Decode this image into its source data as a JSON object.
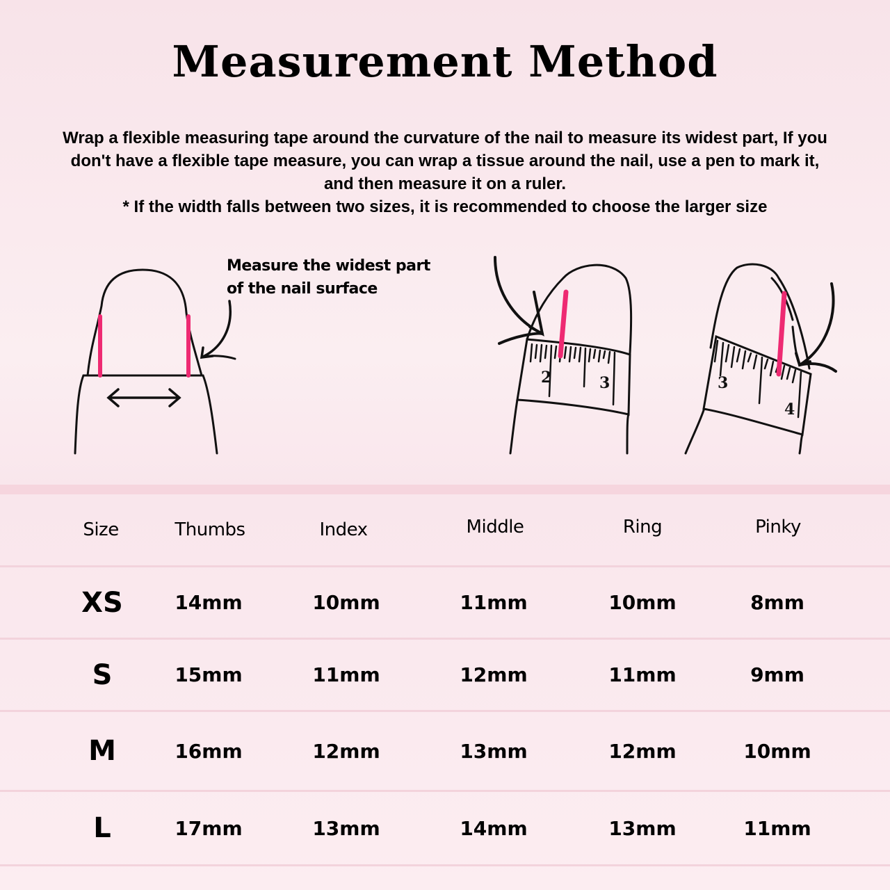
{
  "title": "Measurement Method",
  "description": [
    "Wrap a flexible measuring tape around the curvature of the nail to measure its widest part, If you",
    "don't have a flexible tape measure, you can wrap a tissue around the nail, use a pen to mark it,",
    "and then measure it on a ruler.",
    "* If the width falls between two sizes, it is recommended to choose the larger size"
  ],
  "illustration": {
    "label_lines": [
      "Measure the widest part",
      "of the nail surface"
    ],
    "ruler1_numbers": [
      "2",
      "3"
    ],
    "ruler2_numbers": [
      "3",
      "4"
    ],
    "accent_color": "#ee2a72"
  },
  "table": {
    "headers": [
      "Size",
      "Thumbs",
      "Index",
      "Middle",
      "Ring",
      "Pinky"
    ],
    "rows": [
      [
        "XS",
        "14mm",
        "10mm",
        "11mm",
        "10mm",
        "8mm"
      ],
      [
        "S",
        "15mm",
        "11mm",
        "12mm",
        "11mm",
        "9mm"
      ],
      [
        "M",
        "16mm",
        "12mm",
        "13mm",
        "12mm",
        "10mm"
      ],
      [
        "L",
        "17mm",
        "13mm",
        "14mm",
        "13mm",
        "11mm"
      ]
    ]
  }
}
